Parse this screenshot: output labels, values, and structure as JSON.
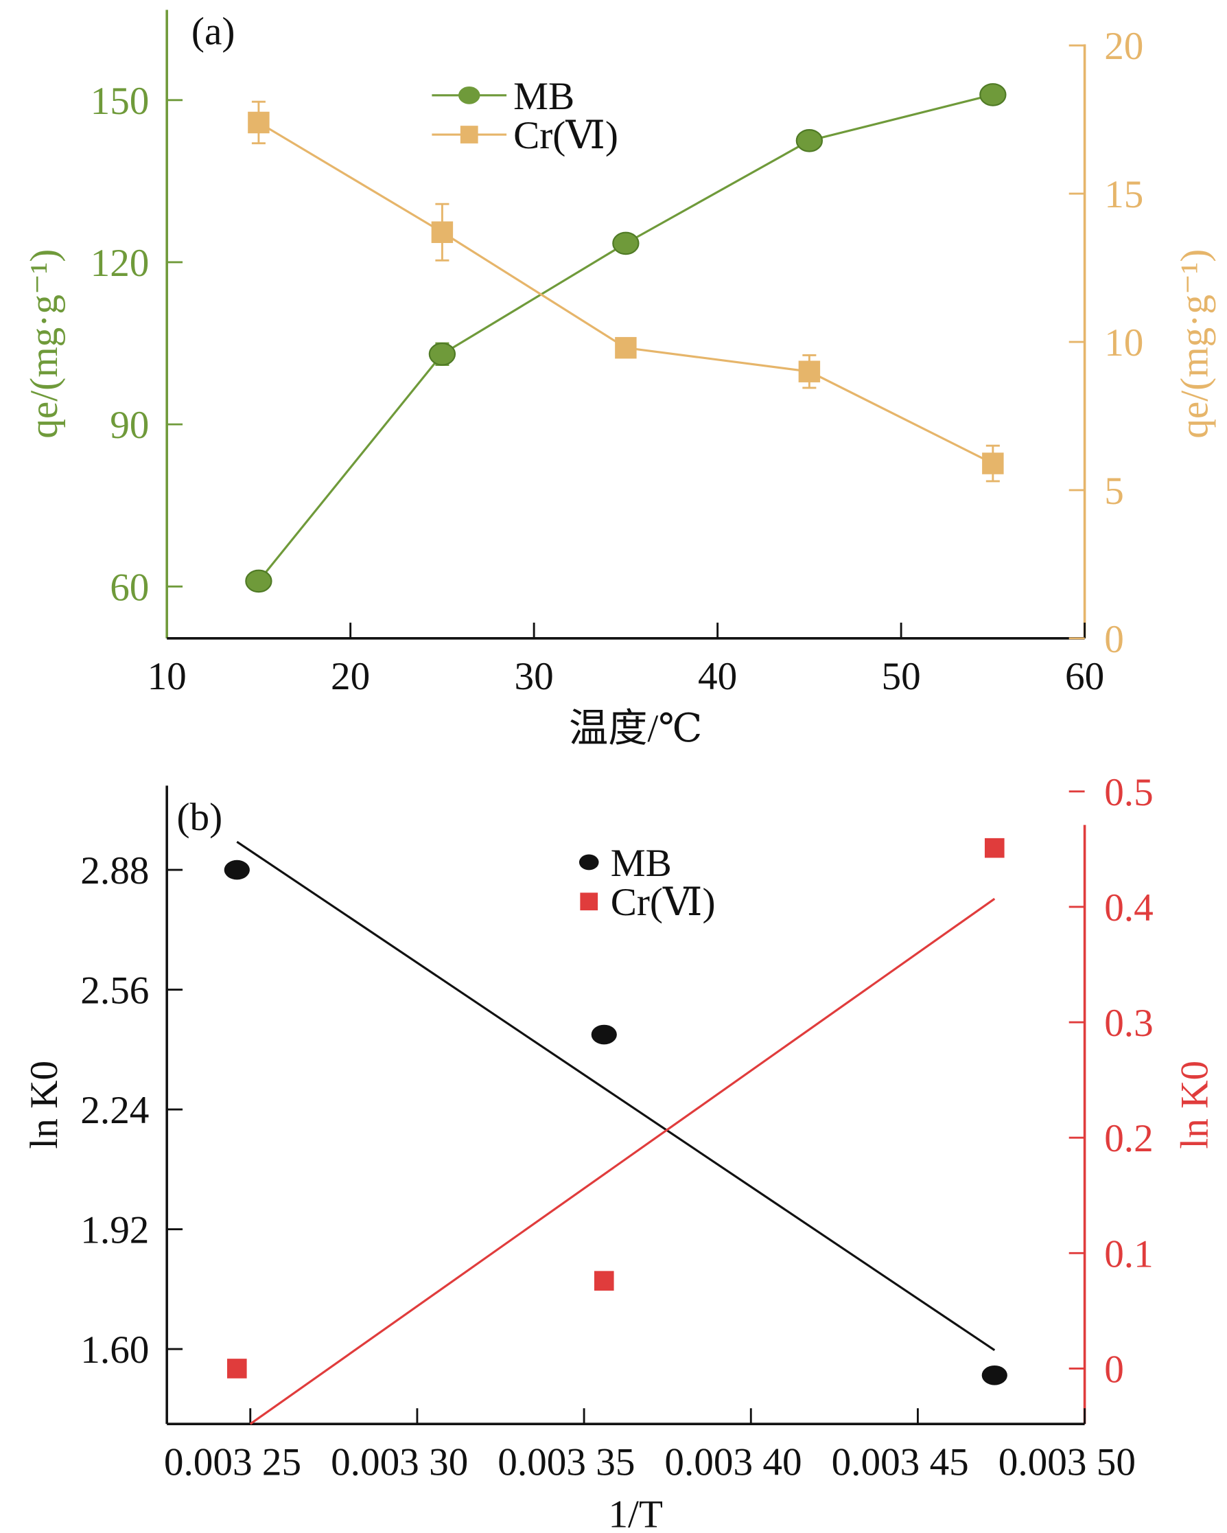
{
  "colors": {
    "mb_a": "#6f9a3a",
    "cr_a": "#e6b56a",
    "mb_b": "#111111",
    "cr_b": "#e03c3c"
  },
  "chart_data": [
    {
      "panel_label": "(a)",
      "type": "line",
      "xlabel": "温度/℃",
      "ylabel_left": "qe/(mg·g⁻¹)",
      "ylabel_right": "qe/(mg·g⁻¹)",
      "xlim": [
        10,
        60
      ],
      "xticks": [
        10,
        20,
        30,
        40,
        50,
        60
      ],
      "ylim_left": [
        50.4,
        166.7
      ],
      "yticks_left": [
        60,
        90,
        120,
        150
      ],
      "ylim_right": [
        0,
        21.2
      ],
      "yticks_right": [
        0,
        5,
        10,
        15,
        20
      ],
      "legend": [
        "MB",
        "Cr(Ⅵ)"
      ],
      "legend_position": "top-center",
      "series": [
        {
          "name": "MB",
          "axis": "left",
          "x": [
            15,
            25,
            35,
            45,
            55
          ],
          "y": [
            61,
            103,
            123.5,
            142.5,
            151
          ],
          "err": [
            1.5,
            2,
            1,
            1.5,
            1
          ]
        },
        {
          "name": "Cr(Ⅵ)",
          "axis": "right",
          "x": [
            15,
            25,
            35,
            45,
            55
          ],
          "y": [
            17.4,
            13.7,
            9.8,
            9.0,
            5.9
          ],
          "err": [
            0.7,
            0.95,
            0.3,
            0.55,
            0.6
          ]
        }
      ]
    },
    {
      "panel_label": "(b)",
      "type": "scatter",
      "xlabel": "1/T",
      "ylabel_left": "ln K0",
      "ylabel_right": "ln K0",
      "xlim": [
        0.003225,
        0.0035
      ],
      "xticks": [
        0.00325,
        0.0033,
        0.00335,
        0.0034,
        0.00345,
        0.0035
      ],
      "xtick_labels": [
        "0.003 25",
        "0.003 30",
        "0.003 35",
        "0.003 40",
        "0.003 45",
        "0.003 50"
      ],
      "ylim_left": [
        1.4,
        3.105
      ],
      "yticks_left": [
        1.6,
        1.92,
        2.24,
        2.56,
        2.88
      ],
      "ytick_labels_left": [
        "1.60",
        "1.92",
        "2.24",
        "2.56",
        "2.88"
      ],
      "ylim_right": [
        -0.048,
        0.505
      ],
      "yticks_right": [
        0,
        0.1,
        0.2,
        0.3,
        0.4,
        0.5
      ],
      "legend": [
        "MB",
        "Cr(Ⅵ)"
      ],
      "legend_position": "top-center",
      "series": [
        {
          "name": "MB",
          "axis": "left",
          "x": [
            0.003246,
            0.003356,
            0.003473
          ],
          "y": [
            2.88,
            2.44,
            1.53
          ],
          "fit": {
            "x": [
              0.003246,
              0.003473
            ],
            "y": [
              2.955,
              1.597
            ]
          }
        },
        {
          "name": "Cr(Ⅵ)",
          "axis": "right",
          "x": [
            0.003246,
            0.003356,
            0.003473
          ],
          "y": [
            0.0,
            0.076,
            0.451
          ],
          "fit": {
            "x": [
              0.00325,
              0.003473
            ],
            "y": [
              -0.048,
              0.407
            ]
          }
        }
      ]
    }
  ]
}
